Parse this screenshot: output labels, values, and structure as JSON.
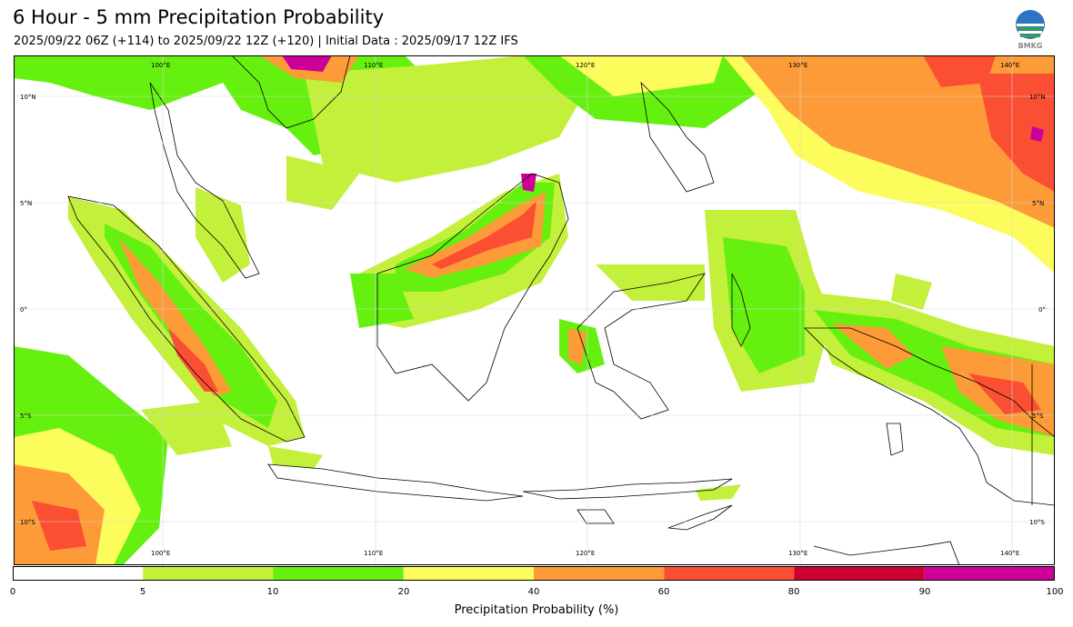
{
  "title": "6 Hour - 5 mm Precipitation Probability",
  "subtitle": "2025/09/22 06Z (+114) to 2025/09/22 12Z (+120) | Initial Data : 2025/09/17 12Z IFS",
  "logo_text": "BMKG",
  "map": {
    "lon_labels": [
      "100°E",
      "110°E",
      "120°E",
      "130°E",
      "140°E"
    ],
    "lat_labels": [
      "10°N",
      "5°N",
      "0°",
      "5°S",
      "10°S"
    ]
  },
  "colorbar": {
    "label": "Precipitation Probability (%)",
    "ticks": [
      "0",
      "5",
      "10",
      "20",
      "40",
      "60",
      "80",
      "90",
      "100"
    ],
    "colors": [
      "#ffffff",
      "#c3f03a",
      "#66f00f",
      "#fcfc5c",
      "#fc9b37",
      "#fb4f33",
      "#cc0033",
      "#cc0099"
    ]
  }
}
